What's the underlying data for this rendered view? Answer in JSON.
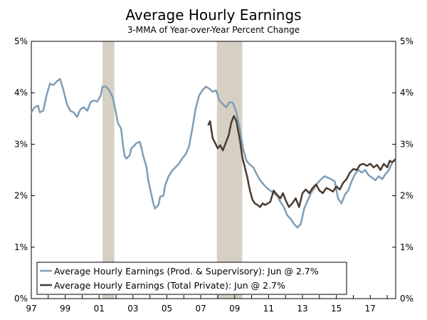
{
  "chart_data": {
    "type": "line",
    "title": "Average Hourly Earnings",
    "subtitle": "3-MMA of Year-over-Year Percent Change",
    "xlabel": "",
    "ylabel": "",
    "x_range": [
      1997,
      2018.5
    ],
    "ylim": [
      0,
      5
    ],
    "grid": false,
    "legend_position": "bottom-left",
    "x_tick_labels": [
      "97",
      "99",
      "01",
      "03",
      "05",
      "07",
      "09",
      "11",
      "13",
      "15",
      "17"
    ],
    "x_tick_values": [
      1997,
      1999,
      2001,
      2003,
      2005,
      2007,
      2009,
      2011,
      2013,
      2015,
      2017
    ],
    "y_tick_labels_left": [
      "0%",
      "1%",
      "2%",
      "3%",
      "4%",
      "5%"
    ],
    "y_tick_labels_right": [
      "0%",
      "1%",
      "2%",
      "3%",
      "4%",
      "5%"
    ],
    "y_tick_values": [
      0,
      1,
      2,
      3,
      4,
      5
    ],
    "recessions": [
      {
        "start": 2001.2,
        "end": 2001.9
      },
      {
        "start": 2007.95,
        "end": 2009.45
      }
    ],
    "series": [
      {
        "name": "Average Hourly Earnings (Prod. & Supervisory): Jun @ 2.7%",
        "color": "#7f9db5",
        "points": [
          [
            1997.0,
            3.62
          ],
          [
            1997.2,
            3.72
          ],
          [
            1997.4,
            3.75
          ],
          [
            1997.5,
            3.62
          ],
          [
            1997.7,
            3.65
          ],
          [
            1997.9,
            3.95
          ],
          [
            1998.1,
            4.18
          ],
          [
            1998.3,
            4.15
          ],
          [
            1998.5,
            4.22
          ],
          [
            1998.7,
            4.27
          ],
          [
            1998.9,
            4.05
          ],
          [
            1999.1,
            3.78
          ],
          [
            1999.3,
            3.65
          ],
          [
            1999.5,
            3.62
          ],
          [
            1999.7,
            3.53
          ],
          [
            1999.9,
            3.68
          ],
          [
            2000.1,
            3.72
          ],
          [
            2000.3,
            3.65
          ],
          [
            2000.5,
            3.82
          ],
          [
            2000.7,
            3.85
          ],
          [
            2000.9,
            3.83
          ],
          [
            2001.1,
            3.95
          ],
          [
            2001.2,
            4.12
          ],
          [
            2001.4,
            4.12
          ],
          [
            2001.6,
            4.05
          ],
          [
            2001.8,
            3.92
          ],
          [
            2002.0,
            3.6
          ],
          [
            2002.1,
            3.42
          ],
          [
            2002.3,
            3.3
          ],
          [
            2002.4,
            3.0
          ],
          [
            2002.5,
            2.78
          ],
          [
            2002.6,
            2.72
          ],
          [
            2002.8,
            2.78
          ],
          [
            2002.9,
            2.92
          ],
          [
            2003.1,
            2.98
          ],
          [
            2003.2,
            3.02
          ],
          [
            2003.4,
            3.05
          ],
          [
            2003.5,
            2.92
          ],
          [
            2003.6,
            2.78
          ],
          [
            2003.8,
            2.55
          ],
          [
            2003.9,
            2.3
          ],
          [
            2004.1,
            2.0
          ],
          [
            2004.2,
            1.85
          ],
          [
            2004.3,
            1.75
          ],
          [
            2004.5,
            1.82
          ],
          [
            2004.6,
            1.98
          ],
          [
            2004.8,
            2.0
          ],
          [
            2004.9,
            2.2
          ],
          [
            2005.1,
            2.38
          ],
          [
            2005.3,
            2.48
          ],
          [
            2005.5,
            2.55
          ],
          [
            2005.7,
            2.62
          ],
          [
            2005.9,
            2.72
          ],
          [
            2006.1,
            2.8
          ],
          [
            2006.3,
            2.95
          ],
          [
            2006.5,
            3.3
          ],
          [
            2006.7,
            3.7
          ],
          [
            2006.9,
            3.95
          ],
          [
            2007.1,
            4.05
          ],
          [
            2007.3,
            4.12
          ],
          [
            2007.5,
            4.08
          ],
          [
            2007.7,
            4.02
          ],
          [
            2007.9,
            4.05
          ],
          [
            2008.1,
            3.85
          ],
          [
            2008.3,
            3.78
          ],
          [
            2008.5,
            3.72
          ],
          [
            2008.7,
            3.82
          ],
          [
            2008.9,
            3.8
          ],
          [
            2009.1,
            3.62
          ],
          [
            2009.3,
            3.3
          ],
          [
            2009.5,
            2.9
          ],
          [
            2009.7,
            2.68
          ],
          [
            2009.9,
            2.6
          ],
          [
            2010.1,
            2.55
          ],
          [
            2010.3,
            2.42
          ],
          [
            2010.5,
            2.3
          ],
          [
            2010.7,
            2.22
          ],
          [
            2010.9,
            2.15
          ],
          [
            2011.1,
            2.1
          ],
          [
            2011.3,
            2.05
          ],
          [
            2011.5,
            2.0
          ],
          [
            2011.7,
            1.88
          ],
          [
            2011.9,
            1.78
          ],
          [
            2012.1,
            1.62
          ],
          [
            2012.3,
            1.55
          ],
          [
            2012.5,
            1.45
          ],
          [
            2012.7,
            1.38
          ],
          [
            2012.9,
            1.45
          ],
          [
            2013.1,
            1.75
          ],
          [
            2013.3,
            1.9
          ],
          [
            2013.5,
            2.05
          ],
          [
            2013.7,
            2.15
          ],
          [
            2013.9,
            2.25
          ],
          [
            2014.1,
            2.32
          ],
          [
            2014.3,
            2.38
          ],
          [
            2014.5,
            2.35
          ],
          [
            2014.7,
            2.32
          ],
          [
            2014.9,
            2.28
          ],
          [
            2015.1,
            1.95
          ],
          [
            2015.3,
            1.85
          ],
          [
            2015.5,
            2.02
          ],
          [
            2015.7,
            2.1
          ],
          [
            2015.9,
            2.28
          ],
          [
            2016.1,
            2.42
          ],
          [
            2016.3,
            2.5
          ],
          [
            2016.5,
            2.45
          ],
          [
            2016.7,
            2.5
          ],
          [
            2016.9,
            2.4
          ],
          [
            2017.1,
            2.35
          ],
          [
            2017.3,
            2.3
          ],
          [
            2017.5,
            2.38
          ],
          [
            2017.7,
            2.32
          ],
          [
            2017.9,
            2.42
          ],
          [
            2018.1,
            2.5
          ],
          [
            2018.3,
            2.65
          ],
          [
            2018.45,
            2.7
          ]
        ]
      },
      {
        "name": "Average Hourly Earnings (Total Private): Jun @ 2.7%",
        "color": "#4a3b30",
        "points": [
          [
            2007.45,
            3.38
          ],
          [
            2007.55,
            3.45
          ],
          [
            2007.7,
            3.12
          ],
          [
            2007.85,
            3.02
          ],
          [
            2008.0,
            2.92
          ],
          [
            2008.15,
            2.98
          ],
          [
            2008.3,
            2.88
          ],
          [
            2008.5,
            3.05
          ],
          [
            2008.65,
            3.18
          ],
          [
            2008.8,
            3.42
          ],
          [
            2008.95,
            3.55
          ],
          [
            2009.1,
            3.45
          ],
          [
            2009.3,
            3.1
          ],
          [
            2009.45,
            2.75
          ],
          [
            2009.6,
            2.55
          ],
          [
            2009.75,
            2.35
          ],
          [
            2009.9,
            2.1
          ],
          [
            2010.05,
            1.92
          ],
          [
            2010.2,
            1.85
          ],
          [
            2010.35,
            1.82
          ],
          [
            2010.5,
            1.78
          ],
          [
            2010.65,
            1.85
          ],
          [
            2010.8,
            1.82
          ],
          [
            2010.95,
            1.85
          ],
          [
            2011.1,
            1.88
          ],
          [
            2011.3,
            2.1
          ],
          [
            2011.5,
            2.02
          ],
          [
            2011.7,
            1.95
          ],
          [
            2011.85,
            2.05
          ],
          [
            2012.0,
            1.92
          ],
          [
            2012.2,
            1.78
          ],
          [
            2012.4,
            1.85
          ],
          [
            2012.6,
            1.95
          ],
          [
            2012.8,
            1.78
          ],
          [
            2013.0,
            2.05
          ],
          [
            2013.2,
            2.12
          ],
          [
            2013.4,
            2.05
          ],
          [
            2013.6,
            2.15
          ],
          [
            2013.8,
            2.22
          ],
          [
            2014.0,
            2.1
          ],
          [
            2014.2,
            2.05
          ],
          [
            2014.4,
            2.15
          ],
          [
            2014.6,
            2.12
          ],
          [
            2014.8,
            2.08
          ],
          [
            2015.0,
            2.18
          ],
          [
            2015.2,
            2.12
          ],
          [
            2015.4,
            2.25
          ],
          [
            2015.6,
            2.32
          ],
          [
            2015.8,
            2.45
          ],
          [
            2016.0,
            2.52
          ],
          [
            2016.2,
            2.5
          ],
          [
            2016.4,
            2.6
          ],
          [
            2016.6,
            2.62
          ],
          [
            2016.8,
            2.58
          ],
          [
            2017.0,
            2.62
          ],
          [
            2017.2,
            2.55
          ],
          [
            2017.4,
            2.6
          ],
          [
            2017.6,
            2.5
          ],
          [
            2017.8,
            2.62
          ],
          [
            2018.0,
            2.55
          ],
          [
            2018.15,
            2.68
          ],
          [
            2018.3,
            2.65
          ],
          [
            2018.45,
            2.7
          ]
        ]
      }
    ]
  }
}
